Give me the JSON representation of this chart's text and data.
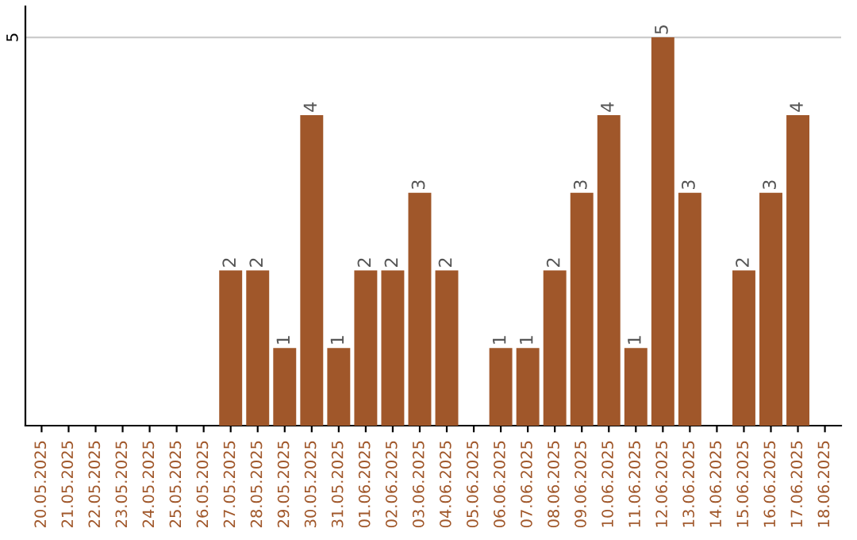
{
  "chart_data": {
    "type": "bar",
    "categories": [
      "20.05.2025",
      "21.05.2025",
      "22.05.2025",
      "23.05.2025",
      "24.05.2025",
      "25.05.2025",
      "26.05.2025",
      "27.05.2025",
      "28.05.2025",
      "29.05.2025",
      "30.05.2025",
      "31.05.2025",
      "01.06.2025",
      "02.06.2025",
      "03.06.2025",
      "04.06.2025",
      "05.06.2025",
      "06.06.2025",
      "07.06.2025",
      "08.06.2025",
      "09.06.2025",
      "10.06.2025",
      "11.06.2025",
      "12.06.2025",
      "13.06.2025",
      "14.06.2025",
      "15.06.2025",
      "16.06.2025",
      "17.06.2025",
      "18.06.2025"
    ],
    "values": [
      0,
      0,
      0,
      0,
      0,
      0,
      0,
      2,
      2,
      1,
      4,
      1,
      2,
      2,
      3,
      2,
      0,
      1,
      1,
      2,
      3,
      4,
      1,
      5,
      3,
      0,
      2,
      3,
      4,
      0
    ],
    "value_labels": [
      null,
      null,
      null,
      null,
      null,
      null,
      null,
      "2",
      "2",
      "1",
      "4",
      "1",
      "2",
      "2",
      "3",
      "2",
      null,
      "1",
      "1",
      "2",
      "3",
      "4",
      "1",
      "5",
      "3",
      null,
      "2",
      "3",
      "4",
      null
    ],
    "color": "#a0572a",
    "ylim": [
      0,
      5.4
    ],
    "yticks": [
      5
    ],
    "grid": "y"
  }
}
